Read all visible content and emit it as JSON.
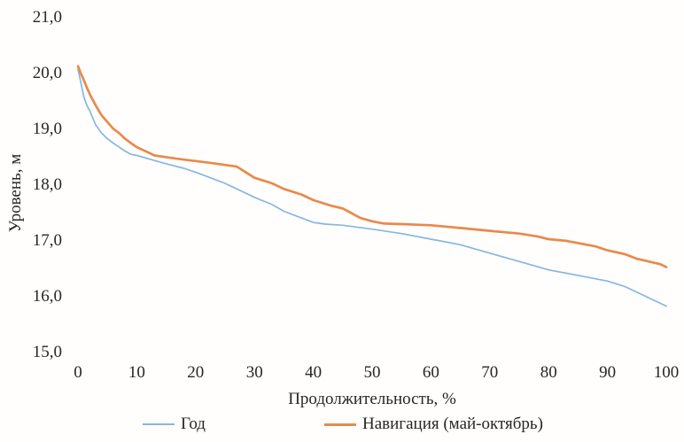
{
  "chart_data": {
    "type": "line",
    "title": "",
    "xlabel": "Продолжительность, %",
    "ylabel": "Уровень, м",
    "xlim": [
      0,
      100
    ],
    "ylim": [
      15.0,
      21.0
    ],
    "grid": false,
    "legend_position": "bottom",
    "x_ticks": [
      {
        "v": 0,
        "label": "0"
      },
      {
        "v": 10,
        "label": "10"
      },
      {
        "v": 20,
        "label": "20"
      },
      {
        "v": 30,
        "label": "30"
      },
      {
        "v": 40,
        "label": "40"
      },
      {
        "v": 50,
        "label": "50"
      },
      {
        "v": 60,
        "label": "60"
      },
      {
        "v": 70,
        "label": "70"
      },
      {
        "v": 80,
        "label": "80"
      },
      {
        "v": 90,
        "label": "90"
      },
      {
        "v": 100,
        "label": "100"
      }
    ],
    "y_ticks": [
      {
        "v": 21.0,
        "label": "21,0"
      },
      {
        "v": 20.0,
        "label": "20,0"
      },
      {
        "v": 19.0,
        "label": "19,0"
      },
      {
        "v": 18.0,
        "label": "18,0"
      },
      {
        "v": 17.0,
        "label": "17,0"
      },
      {
        "v": 16.0,
        "label": "16,0"
      },
      {
        "v": 15.0,
        "label": "15,0"
      }
    ],
    "series": [
      {
        "name": "Год",
        "color": "#85b7e4",
        "line_width": 1.7,
        "points": [
          [
            0,
            20.05
          ],
          [
            0.5,
            19.8
          ],
          [
            1,
            19.55
          ],
          [
            1.5,
            19.4
          ],
          [
            2,
            19.3
          ],
          [
            3,
            19.05
          ],
          [
            4,
            18.9
          ],
          [
            5,
            18.8
          ],
          [
            6,
            18.72
          ],
          [
            7,
            18.65
          ],
          [
            8,
            18.58
          ],
          [
            9,
            18.52
          ],
          [
            10,
            18.5
          ],
          [
            12,
            18.44
          ],
          [
            15,
            18.35
          ],
          [
            18,
            18.27
          ],
          [
            20,
            18.2
          ],
          [
            22,
            18.12
          ],
          [
            25,
            18.0
          ],
          [
            28,
            17.85
          ],
          [
            30,
            17.75
          ],
          [
            33,
            17.62
          ],
          [
            35,
            17.5
          ],
          [
            38,
            17.38
          ],
          [
            40,
            17.3
          ],
          [
            42,
            17.27
          ],
          [
            45,
            17.25
          ],
          [
            50,
            17.18
          ],
          [
            55,
            17.1
          ],
          [
            60,
            17.0
          ],
          [
            65,
            16.9
          ],
          [
            70,
            16.75
          ],
          [
            75,
            16.6
          ],
          [
            80,
            16.45
          ],
          [
            85,
            16.35
          ],
          [
            90,
            16.25
          ],
          [
            93,
            16.15
          ],
          [
            96,
            16.0
          ],
          [
            100,
            15.8
          ]
        ]
      },
      {
        "name": "Навигация (май-октябрь)",
        "color": "#e9894b",
        "line_width": 2.7,
        "points": [
          [
            0,
            20.1
          ],
          [
            0.5,
            19.97
          ],
          [
            1,
            19.85
          ],
          [
            1.5,
            19.72
          ],
          [
            2,
            19.6
          ],
          [
            3,
            19.4
          ],
          [
            4,
            19.22
          ],
          [
            5,
            19.1
          ],
          [
            6,
            18.98
          ],
          [
            7,
            18.9
          ],
          [
            8,
            18.8
          ],
          [
            9,
            18.72
          ],
          [
            10,
            18.65
          ],
          [
            11,
            18.6
          ],
          [
            12,
            18.55
          ],
          [
            13,
            18.5
          ],
          [
            15,
            18.47
          ],
          [
            17,
            18.44
          ],
          [
            20,
            18.4
          ],
          [
            23,
            18.36
          ],
          [
            25,
            18.33
          ],
          [
            27,
            18.3
          ],
          [
            30,
            18.1
          ],
          [
            33,
            18.0
          ],
          [
            35,
            17.9
          ],
          [
            38,
            17.8
          ],
          [
            40,
            17.7
          ],
          [
            43,
            17.6
          ],
          [
            45,
            17.55
          ],
          [
            48,
            17.38
          ],
          [
            50,
            17.32
          ],
          [
            52,
            17.28
          ],
          [
            55,
            17.27
          ],
          [
            60,
            17.25
          ],
          [
            65,
            17.2
          ],
          [
            70,
            17.15
          ],
          [
            75,
            17.1
          ],
          [
            78,
            17.05
          ],
          [
            80,
            17.0
          ],
          [
            83,
            16.97
          ],
          [
            85,
            16.93
          ],
          [
            88,
            16.87
          ],
          [
            90,
            16.8
          ],
          [
            93,
            16.73
          ],
          [
            95,
            16.65
          ],
          [
            97,
            16.6
          ],
          [
            99,
            16.55
          ],
          [
            100,
            16.5
          ]
        ]
      }
    ]
  },
  "legend": {
    "items": [
      {
        "label": "Год"
      },
      {
        "label": "Навигация (май-октябрь)"
      }
    ]
  }
}
